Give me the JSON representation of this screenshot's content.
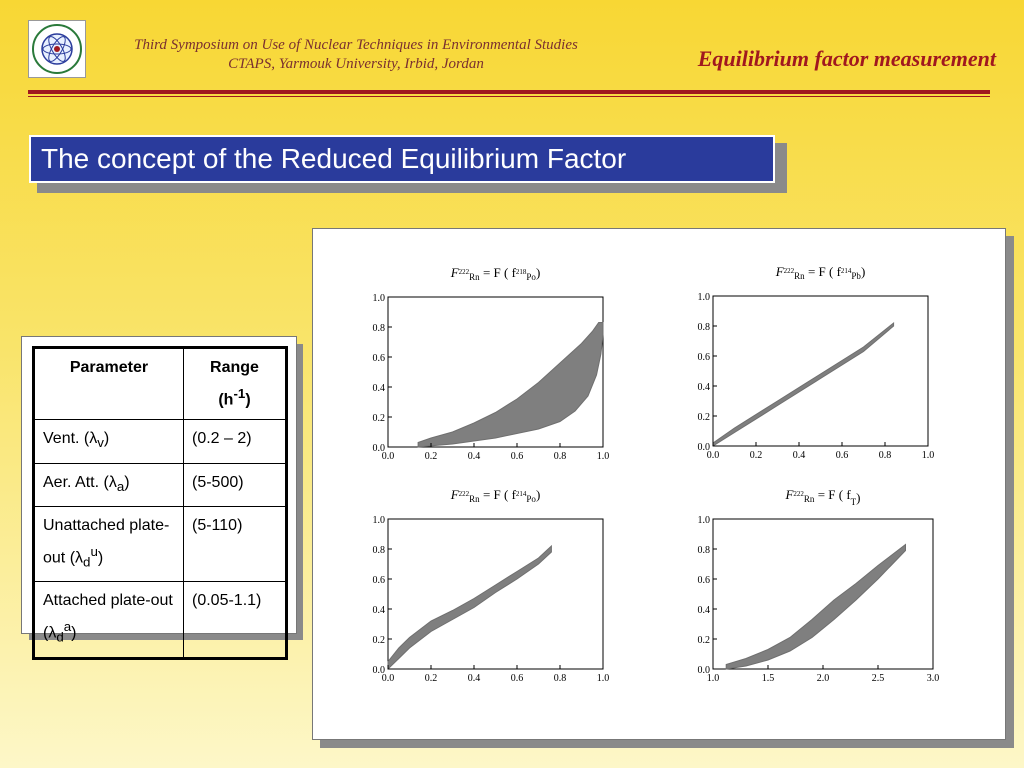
{
  "header": {
    "conference_line1": "Third Symposium on Use of  Nuclear Techniques in Environmental Studies",
    "conference_line2": "CTAPS, Yarmouk University, Irbid, Jordan",
    "slide_title": "Equilibrium factor measurement"
  },
  "banner": {
    "text": "The concept of the Reduced Equilibrium Factor"
  },
  "table": {
    "headers": {
      "parameter": "Parameter",
      "range_1": "Range",
      "range_2": "(h",
      "range_sup": "-1",
      "range_3": ")"
    },
    "rows": [
      {
        "p1": "Vent. (",
        "sym": "λ",
        "sub": "v",
        "sup": "",
        "p2": ")",
        "range": "(0.2 – 2)"
      },
      {
        "p1": "Aer. Att. (",
        "sym": "λ",
        "sub": "a",
        "sup": "",
        "p2": ")",
        "range": "(5-500)"
      },
      {
        "p1": "Unattached plate-out (",
        "sym": "λ",
        "sub": "d",
        "sup": "u",
        "p2": ")",
        "range": "(5-110)"
      },
      {
        "p1": "Attached plate-out (",
        "sym": "λ",
        "sub": "d",
        "sup": "a",
        "p2": ")",
        "range": "(0.05-1.1)"
      }
    ]
  },
  "chart_data": [
    {
      "type": "area",
      "formula": {
        "lhs": "F",
        "lhs_sup": "222",
        "lhs_sub": "Rn",
        "rhs": "= F ( f",
        "rhs_sup": "218",
        "rhs_sub": "Po",
        "close": ")"
      },
      "xlim": [
        0,
        1.0
      ],
      "ylim": [
        0,
        1.0
      ],
      "xticks": [
        "0.0",
        "0.2",
        "0.4",
        "0.6",
        "0.8",
        "1.0"
      ],
      "yticks": [
        "0.0",
        "0.2",
        "0.4",
        "0.6",
        "0.8",
        "1.0"
      ],
      "series": [
        {
          "upper": [
            [
              0.14,
              0.03
            ],
            [
              0.2,
              0.06
            ],
            [
              0.3,
              0.1
            ],
            [
              0.4,
              0.16
            ],
            [
              0.5,
              0.23
            ],
            [
              0.6,
              0.32
            ],
            [
              0.7,
              0.43
            ],
            [
              0.8,
              0.56
            ],
            [
              0.9,
              0.69
            ],
            [
              0.95,
              0.77
            ],
            [
              0.98,
              0.83
            ],
            [
              1.0,
              0.83
            ]
          ],
          "lower": [
            [
              0.14,
              0.0
            ],
            [
              0.3,
              0.02
            ],
            [
              0.5,
              0.06
            ],
            [
              0.7,
              0.12
            ],
            [
              0.8,
              0.17
            ],
            [
              0.87,
              0.24
            ],
            [
              0.93,
              0.34
            ],
            [
              0.97,
              0.48
            ],
            [
              0.99,
              0.62
            ],
            [
              1.0,
              0.75
            ]
          ]
        }
      ]
    },
    {
      "type": "area",
      "formula": {
        "lhs": "F",
        "lhs_sup": "222",
        "lhs_sub": "Rn",
        "rhs": "= F ( f",
        "rhs_sup": "214",
        "rhs_sub": "Pb",
        "close": ")"
      },
      "xlim": [
        0,
        1.0
      ],
      "ylim": [
        0,
        1.0
      ],
      "xticks": [
        "0.0",
        "0.2",
        "0.4",
        "0.6",
        "0.8",
        "1.0"
      ],
      "yticks": [
        "0.0",
        "0.2",
        "0.4",
        "0.6",
        "0.8",
        "1.0"
      ],
      "series": [
        {
          "upper": [
            [
              0.0,
              0.02
            ],
            [
              0.1,
              0.12
            ],
            [
              0.3,
              0.3
            ],
            [
              0.5,
              0.48
            ],
            [
              0.7,
              0.66
            ],
            [
              0.84,
              0.82
            ]
          ],
          "lower": [
            [
              0.0,
              0.0
            ],
            [
              0.1,
              0.09
            ],
            [
              0.3,
              0.27
            ],
            [
              0.5,
              0.45
            ],
            [
              0.7,
              0.63
            ],
            [
              0.84,
              0.8
            ]
          ]
        }
      ]
    },
    {
      "type": "area",
      "formula": {
        "lhs": "F",
        "lhs_sup": "222",
        "lhs_sub": "Rn",
        "rhs": "= F ( f",
        "rhs_sup": "214",
        "rhs_sub": "Po",
        "close": ")"
      },
      "xlim": [
        0,
        1.0
      ],
      "ylim": [
        0,
        1.0
      ],
      "xticks": [
        "0.0",
        "0.2",
        "0.4",
        "0.6",
        "0.8",
        "1.0"
      ],
      "yticks": [
        "0.0",
        "0.2",
        "0.4",
        "0.6",
        "0.8",
        "1.0"
      ],
      "series": [
        {
          "upper": [
            [
              0.0,
              0.05
            ],
            [
              0.05,
              0.14
            ],
            [
              0.1,
              0.21
            ],
            [
              0.2,
              0.32
            ],
            [
              0.3,
              0.39
            ],
            [
              0.4,
              0.47
            ],
            [
              0.5,
              0.56
            ],
            [
              0.6,
              0.65
            ],
            [
              0.7,
              0.74
            ],
            [
              0.76,
              0.82
            ]
          ],
          "lower": [
            [
              0.0,
              0.0
            ],
            [
              0.05,
              0.07
            ],
            [
              0.1,
              0.14
            ],
            [
              0.2,
              0.25
            ],
            [
              0.3,
              0.33
            ],
            [
              0.4,
              0.41
            ],
            [
              0.5,
              0.51
            ],
            [
              0.6,
              0.6
            ],
            [
              0.7,
              0.7
            ],
            [
              0.76,
              0.78
            ]
          ]
        }
      ]
    },
    {
      "type": "area",
      "formula": {
        "lhs": "F",
        "lhs_sup": "222",
        "lhs_sub": "Rn",
        "rhs": "= F ( f",
        "rhs_sup": "",
        "rhs_sub": "T",
        "close": ")"
      },
      "xlim": [
        1.0,
        3.0
      ],
      "ylim": [
        0,
        1.0
      ],
      "xticks": [
        "1.0",
        "1.5",
        "2.0",
        "2.5",
        "3.0"
      ],
      "yticks": [
        "0.0",
        "0.2",
        "0.4",
        "0.6",
        "0.8",
        "1.0"
      ],
      "series": [
        {
          "upper": [
            [
              1.12,
              0.03
            ],
            [
              1.3,
              0.07
            ],
            [
              1.5,
              0.13
            ],
            [
              1.7,
              0.21
            ],
            [
              1.9,
              0.33
            ],
            [
              2.1,
              0.46
            ],
            [
              2.3,
              0.57
            ],
            [
              2.5,
              0.69
            ],
            [
              2.75,
              0.83
            ]
          ],
          "lower": [
            [
              1.12,
              0.0
            ],
            [
              1.3,
              0.02
            ],
            [
              1.5,
              0.06
            ],
            [
              1.7,
              0.12
            ],
            [
              1.9,
              0.21
            ],
            [
              2.1,
              0.33
            ],
            [
              2.3,
              0.46
            ],
            [
              2.5,
              0.6
            ],
            [
              2.75,
              0.79
            ]
          ]
        }
      ]
    }
  ]
}
